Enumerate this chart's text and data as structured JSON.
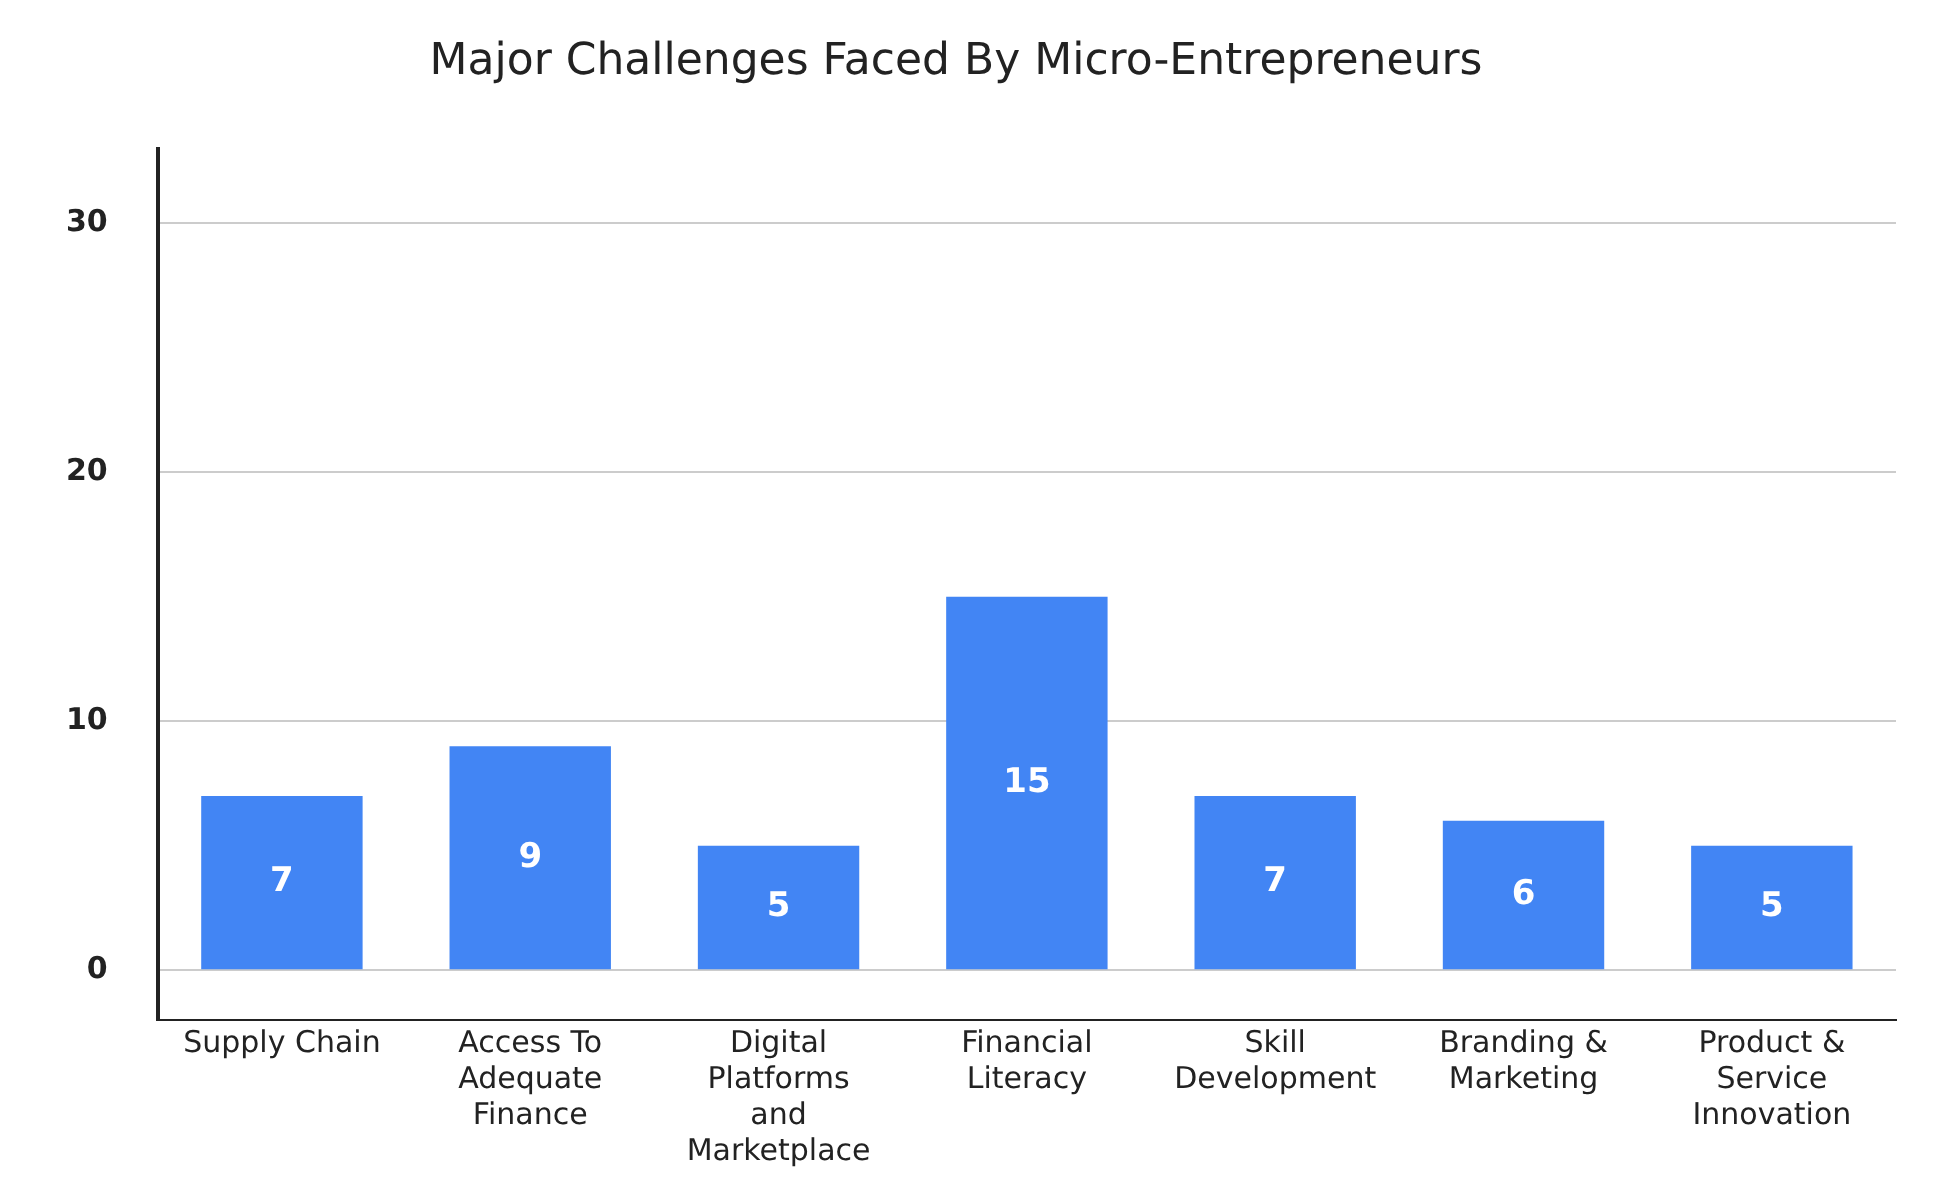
{
  "chart_data": {
    "type": "bar",
    "title": "Major Challenges Faced By Micro-Entrepreneurs",
    "categories": [
      "Supply Chain",
      "Access To Adequate Finance",
      "Digital Platforms and Marketplace",
      "Financial Literacy",
      "Skill Development",
      "Branding & Marketing",
      "Product & Service Innovation"
    ],
    "values": [
      7,
      9,
      5,
      15,
      7,
      6,
      5
    ],
    "color": "#4285f4",
    "ylim": [
      -2,
      33
    ],
    "yticks": [
      0,
      10,
      20,
      30
    ],
    "grid": "y",
    "data_labels": true,
    "legend": false
  }
}
